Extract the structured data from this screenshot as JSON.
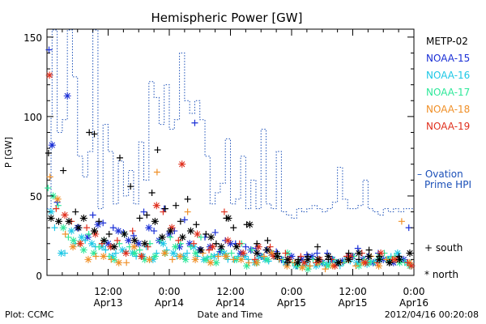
{
  "chart_data": {
    "type": "scatter",
    "title": "Hemispheric Power [GW]",
    "ylabel": "P [GW]",
    "xlabel": "Date and Time",
    "ylim": [
      0,
      155
    ],
    "yticks": [
      0,
      50,
      100,
      150
    ],
    "xlim": [
      0,
      72
    ],
    "xticks": [
      {
        "x": 12,
        "top": "12:00",
        "bottom": "Apr13"
      },
      {
        "x": 24,
        "top": "0:00",
        "bottom": "Apr14"
      },
      {
        "x": 36,
        "top": "12:00",
        "bottom": "Apr14"
      },
      {
        "x": 48,
        "top": "0:00",
        "bottom": "Apr15"
      },
      {
        "x": 60,
        "top": "12:00",
        "bottom": "Apr15"
      },
      {
        "x": 72,
        "top": "0:00",
        "bottom": "Apr16"
      }
    ],
    "legend": [
      {
        "name": "METP-02",
        "color": "#000000"
      },
      {
        "name": "NOAA-15",
        "color": "#1a2fd6"
      },
      {
        "name": "NOAA-16",
        "color": "#1ec8e6"
      },
      {
        "name": "NOAA-17",
        "color": "#2ee89a"
      },
      {
        "name": "NOAA-18",
        "color": "#f09028"
      },
      {
        "name": "NOAA-19",
        "color": "#e0301e"
      }
    ],
    "ovation_label_1": "– Ovation",
    "ovation_label_2": "Prime HPI",
    "ovation_color": "#1a4fb8",
    "marker_south": "+ south",
    "marker_north": "* north",
    "ovation": {
      "x": [
        0,
        0.8,
        1,
        2,
        3,
        4,
        5,
        6,
        7,
        8,
        9,
        10,
        11,
        12,
        13,
        14,
        15,
        16,
        17,
        18,
        19,
        20,
        21,
        22,
        23,
        24,
        25,
        26,
        27,
        28,
        29,
        30,
        31,
        32,
        33,
        34,
        35,
        36,
        37,
        38,
        39,
        40,
        41,
        42,
        43,
        44,
        45,
        46,
        47,
        48,
        49,
        50,
        51,
        52,
        53,
        54,
        55,
        56,
        57,
        58,
        59,
        60,
        61,
        62,
        63,
        64,
        65,
        66,
        67,
        68,
        69,
        70,
        71,
        72
      ],
      "y": [
        42,
        100,
        158,
        90,
        98,
        156,
        125,
        75,
        62,
        78,
        158,
        42,
        95,
        78,
        45,
        72,
        50,
        66,
        45,
        84,
        60,
        122,
        112,
        95,
        120,
        92,
        98,
        140,
        110,
        102,
        110,
        98,
        75,
        45,
        52,
        58,
        86,
        45,
        48,
        75,
        42,
        60,
        42,
        92,
        45,
        42,
        78,
        40,
        38,
        36,
        42,
        40,
        42,
        44,
        42,
        40,
        42,
        46,
        68,
        48,
        42,
        42,
        44,
        60,
        42,
        40,
        38,
        42,
        40,
        42,
        40,
        42,
        42,
        42
      ]
    },
    "series": [
      {
        "name": "NOAA-15",
        "south_x": [
          0.4,
          2,
          9,
          11,
          13,
          15,
          17,
          19,
          21,
          23,
          25,
          27,
          29,
          31,
          33,
          35,
          37,
          39,
          41,
          43,
          45,
          47,
          49,
          51,
          53,
          55,
          57,
          59,
          61,
          63,
          65,
          67,
          69,
          71
        ],
        "south_y": [
          142,
          46,
          38,
          33,
          30,
          27,
          25,
          40,
          28,
          42,
          28,
          35,
          96,
          24,
          27,
          22,
          20,
          18,
          17,
          16,
          15,
          7,
          6,
          13,
          14,
          14,
          8,
          12,
          17,
          12,
          14,
          10,
          12,
          30
        ],
        "north_x": [
          1,
          4,
          6,
          8,
          10,
          12,
          14,
          16,
          18,
          20,
          22,
          24,
          26,
          28,
          30,
          32,
          34,
          36,
          38,
          40,
          42,
          44,
          46,
          48,
          50,
          52,
          54,
          56,
          58,
          60,
          62,
          64,
          66,
          68,
          70
        ],
        "north_y": [
          82,
          113,
          30,
          24,
          32,
          20,
          28,
          22,
          20,
          30,
          22,
          26,
          18,
          20,
          16,
          18,
          15,
          20,
          14,
          16,
          12,
          14,
          10,
          12,
          10,
          12,
          8,
          10,
          9,
          12,
          10,
          8,
          10,
          8,
          10
        ]
      },
      {
        "name": "NOAA-16",
        "south_x": [
          1.5,
          3.5,
          5.5,
          7.5,
          9.5,
          11.5,
          13.5,
          15.5,
          17.5,
          19.5,
          21.5,
          23.5,
          25.5,
          27.5,
          29.5,
          31.5,
          33.5,
          35.5,
          37.5,
          39.5,
          41.5,
          43.5,
          45.5,
          47.5,
          49.5,
          51.5,
          53.5,
          55.5,
          57.5,
          59.5,
          61.5,
          63.5,
          65.5,
          67.5,
          69.5
        ],
        "south_y": [
          30,
          14,
          20,
          22,
          18,
          16,
          14,
          15,
          12,
          18,
          14,
          16,
          12,
          14,
          12,
          11,
          13,
          10,
          12,
          10,
          11,
          9,
          10,
          8,
          8,
          6,
          7,
          8,
          6,
          9,
          8,
          9,
          10,
          12,
          10
        ],
        "north_x": [
          0.8,
          2.8,
          4.8,
          6.8,
          8.8,
          10.8,
          12.8,
          14.8,
          16.8,
          18.8,
          20.8,
          22.8,
          24.8,
          26.8,
          28.8,
          30.8,
          32.8,
          34.8,
          36.8,
          38.8,
          40.8,
          42.8,
          44.8,
          46.8,
          48.8,
          50.8,
          52.8,
          54.8,
          56.8,
          58.8,
          60.8,
          62.8,
          64.8,
          66.8,
          68.8,
          70.8
        ],
        "north_y": [
          40,
          14,
          28,
          24,
          20,
          18,
          12,
          16,
          14,
          12,
          10,
          20,
          14,
          12,
          18,
          10,
          12,
          14,
          10,
          12,
          8,
          10,
          12,
          8,
          6,
          8,
          6,
          7,
          8,
          10,
          8,
          7,
          9,
          10,
          14,
          8
        ]
      },
      {
        "name": "NOAA-17",
        "south_x": [
          0.2,
          2.2,
          4.2,
          6.2,
          8.2,
          10.2,
          12.2,
          14.2,
          16.2,
          18.2,
          20.2,
          22.2,
          24.2,
          26.2,
          28.2,
          30.2,
          32.2,
          34.2,
          36.2,
          38.2,
          40.2,
          42.2,
          44.2,
          46.2,
          48.2,
          50.2,
          52.2,
          54.2,
          56.2,
          58.2,
          60.2,
          62.2,
          64.2,
          66.2,
          68.2,
          70.2
        ],
        "south_y": [
          55,
          44,
          24,
          20,
          26,
          18,
          12,
          20,
          18,
          16,
          20,
          22,
          24,
          20,
          18,
          24,
          12,
          16,
          14,
          20,
          16,
          12,
          14,
          10,
          8,
          6,
          10,
          8,
          10,
          8,
          12,
          10,
          8,
          14,
          12,
          8
        ],
        "north_x": [
          1.2,
          3.2,
          5.2,
          7.2,
          9.2,
          11.2,
          13.2,
          15.2,
          17.2,
          19.2,
          21.2,
          23.2,
          25.2,
          27.2,
          29.2,
          31.2,
          33.2,
          35.2,
          37.2,
          39.2,
          41.2,
          43.2,
          45.2,
          47.2,
          49.2,
          51.2,
          53.2,
          55.2,
          57.2,
          59.2,
          61.2,
          63.2,
          65.2,
          67.2,
          69.2,
          71.2
        ],
        "north_y": [
          50,
          30,
          22,
          16,
          14,
          22,
          10,
          26,
          14,
          10,
          12,
          14,
          18,
          10,
          14,
          10,
          8,
          12,
          10,
          6,
          8,
          10,
          12,
          14,
          6,
          4,
          8,
          6,
          8,
          10,
          6,
          8,
          12,
          10,
          8,
          6
        ]
      },
      {
        "name": "NOAA-18",
        "south_x": [
          0.6,
          3.6,
          6.6,
          9.6,
          12.6,
          15.6,
          18.6,
          21.6,
          24.6,
          27.6,
          30.6,
          33.6,
          36.6,
          39.6,
          42.6,
          45.6,
          48.6,
          51.6,
          54.6,
          57.6,
          60.6,
          63.6,
          66.6,
          69.6
        ],
        "south_y": [
          62,
          26,
          20,
          12,
          10,
          8,
          12,
          65,
          10,
          40,
          14,
          12,
          10,
          8,
          12,
          10,
          8,
          6,
          4,
          8,
          6,
          12,
          10,
          34
        ],
        "north_x": [
          2.1,
          5.1,
          8.1,
          11.1,
          14.1,
          17.1,
          20.1,
          23.1,
          26.1,
          29.1,
          32.1,
          35.1,
          38.1,
          41.1,
          44.1,
          47.1,
          50.1,
          53.1,
          56.1,
          59.1,
          62.1,
          65.1,
          68.1,
          71.1
        ],
        "north_y": [
          48,
          18,
          10,
          12,
          8,
          18,
          10,
          14,
          12,
          10,
          8,
          12,
          10,
          8,
          14,
          6,
          5,
          8,
          6,
          10,
          8,
          6,
          10,
          8
        ]
      },
      {
        "name": "NOAA-19",
        "south_x": [
          1.8,
          4.8,
          7.8,
          10.8,
          13.8,
          16.8,
          19.8,
          22.8,
          25.8,
          28.8,
          31.8,
          34.8,
          37.8,
          40.8,
          43.8,
          46.8,
          49.8,
          52.8,
          55.8,
          58.8,
          61.8,
          64.8,
          67.8,
          70.8
        ],
        "south_y": [
          42,
          34,
          30,
          20,
          22,
          28,
          18,
          40,
          22,
          20,
          16,
          40,
          20,
          10,
          18,
          14,
          12,
          8,
          10,
          12,
          14,
          8,
          10,
          8
        ],
        "north_x": [
          0.5,
          3.5,
          6.5,
          9.5,
          12.5,
          15.5,
          18.5,
          21.5,
          24.5,
          26.5,
          29.5,
          32.5,
          35.5,
          38.5,
          41.5,
          44.5,
          47.5,
          50.5,
          53.5,
          56.5,
          59.5,
          62.5,
          65.5,
          68.5,
          71.5
        ],
        "north_y": [
          126,
          38,
          20,
          26,
          18,
          14,
          12,
          44,
          30,
          70,
          26,
          18,
          22,
          14,
          18,
          12,
          10,
          8,
          10,
          6,
          12,
          8,
          14,
          10,
          6
        ]
      },
      {
        "name": "METP-02",
        "south_x": [
          0.3,
          3.2,
          5.6,
          8.3,
          9.3,
          10.2,
          12.2,
          14.3,
          16.4,
          18.2,
          19.6,
          20.6,
          21.7,
          23.2,
          25.3,
          26.2,
          27.6,
          29.3,
          31.2,
          33.2,
          35.2,
          36.6,
          39.2,
          41.2,
          43.3,
          45.2,
          47.2,
          49.3,
          51.2,
          53.1,
          55.2,
          57.2,
          59.2,
          61.2,
          63.2,
          65.2,
          67.2,
          69.1
        ],
        "south_y": [
          77,
          66,
          40,
          90,
          89,
          34,
          26,
          74,
          56,
          36,
          38,
          52,
          79,
          42,
          44,
          34,
          48,
          32,
          26,
          20,
          36,
          30,
          32,
          20,
          22,
          14,
          8,
          10,
          12,
          18,
          10,
          8,
          14,
          10,
          16,
          12,
          8,
          12
        ],
        "north_x": [
          0.8,
          2.3,
          4.3,
          6.2,
          7.2,
          9.3,
          11.2,
          13.2,
          15.2,
          17.2,
          19.2,
          21.2,
          22.6,
          24.2,
          26.6,
          28.2,
          30.2,
          32.2,
          34.2,
          35.6,
          37.2,
          39.8,
          41.2,
          43.2,
          45.2,
          47.2,
          49.2,
          51.2,
          53.2,
          55.2,
          57.2,
          59.2,
          61.2,
          63.2,
          65.2,
          67.2,
          69.2,
          71.2
        ],
        "north_y": [
          36,
          34,
          34,
          30,
          36,
          28,
          22,
          18,
          26,
          22,
          20,
          34,
          24,
          28,
          24,
          28,
          16,
          24,
          18,
          36,
          18,
          32,
          14,
          16,
          12,
          10,
          8,
          10,
          10,
          12,
          8,
          10,
          14,
          12,
          10,
          8,
          10,
          14
        ]
      }
    ]
  },
  "footer": {
    "plot_source": "Plot: CCMC",
    "timestamp": "2012/04/16 00:20:08"
  }
}
